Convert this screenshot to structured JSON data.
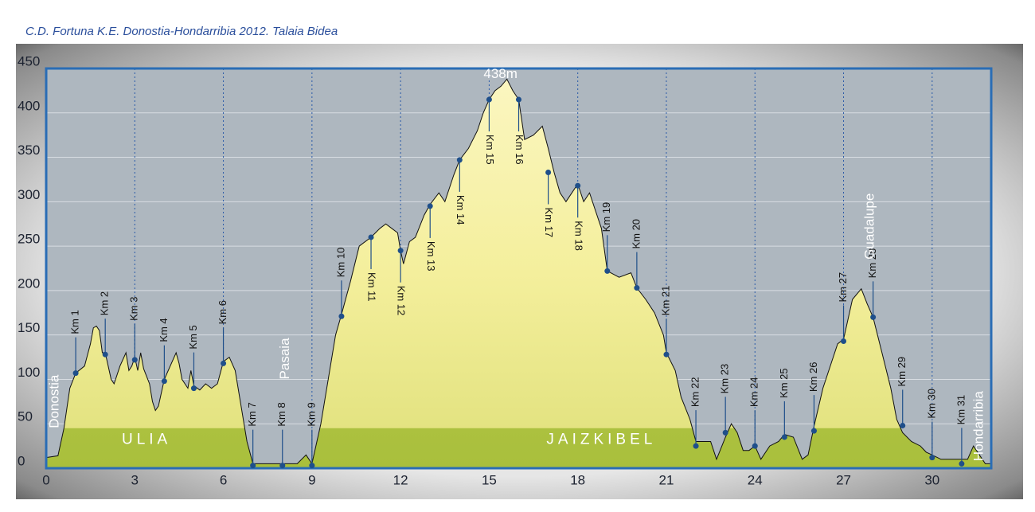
{
  "chart_data": {
    "type": "area",
    "title": "C.D. Fortuna K.E.   Donostia-Hondarribia 2012.  Talaia Bidea",
    "x": [
      0,
      0.4,
      0.6,
      0.8,
      1.0,
      1.3,
      1.5,
      1.6,
      1.7,
      1.8,
      1.9,
      2.0,
      2.2,
      2.3,
      2.5,
      2.7,
      2.8,
      2.9,
      3.0,
      3.1,
      3.2,
      3.3,
      3.5,
      3.6,
      3.7,
      3.8,
      4.0,
      4.2,
      4.4,
      4.5,
      4.6,
      4.8,
      4.9,
      5.0,
      5.2,
      5.4,
      5.6,
      5.8,
      6.0,
      6.2,
      6.4,
      6.6,
      6.8,
      7.0,
      7.5,
      8.0,
      8.5,
      8.8,
      9.0,
      9.3,
      9.6,
      9.8,
      10.0,
      10.3,
      10.6,
      11.0,
      11.3,
      11.5,
      11.7,
      11.9,
      12.0,
      12.1,
      12.3,
      12.5,
      12.8,
      13.0,
      13.3,
      13.5,
      13.8,
      14.0,
      14.3,
      14.6,
      14.8,
      15.0,
      15.2,
      15.4,
      15.6,
      15.8,
      16.0,
      16.2,
      16.5,
      16.8,
      17.0,
      17.2,
      17.4,
      17.6,
      17.8,
      18.0,
      18.2,
      18.4,
      18.6,
      18.8,
      19.0,
      19.4,
      19.8,
      20.0,
      20.3,
      20.6,
      20.9,
      21.0,
      21.3,
      21.5,
      21.8,
      22.0,
      22.2,
      22.5,
      22.7,
      23.0,
      23.2,
      23.4,
      23.6,
      23.8,
      24.0,
      24.2,
      24.5,
      24.8,
      25.0,
      25.3,
      25.6,
      25.8,
      26.0,
      26.3,
      26.6,
      26.8,
      27.0,
      27.3,
      27.6,
      27.8,
      28.0,
      28.3,
      28.6,
      28.8,
      29.0,
      29.3,
      29.6,
      29.8,
      30.0,
      30.3,
      30.6,
      31.0,
      31.2,
      31.4,
      31.6,
      31.8,
      32.0
    ],
    "values": [
      12,
      14,
      45,
      90,
      107,
      115,
      140,
      158,
      160,
      155,
      130,
      130,
      100,
      95,
      115,
      130,
      110,
      115,
      125,
      110,
      130,
      112,
      95,
      75,
      65,
      70,
      100,
      115,
      130,
      118,
      100,
      90,
      110,
      93,
      88,
      95,
      90,
      95,
      120,
      125,
      110,
      70,
      30,
      5,
      5,
      5,
      5,
      15,
      5,
      50,
      110,
      150,
      173,
      210,
      250,
      260,
      270,
      275,
      270,
      265,
      245,
      230,
      255,
      260,
      285,
      297,
      310,
      300,
      330,
      347,
      360,
      380,
      400,
      415,
      425,
      430,
      438,
      425,
      415,
      370,
      375,
      385,
      360,
      333,
      310,
      300,
      310,
      320,
      300,
      310,
      290,
      270,
      222,
      215,
      220,
      203,
      190,
      175,
      150,
      130,
      110,
      80,
      55,
      30,
      30,
      30,
      10,
      35,
      50,
      40,
      20,
      20,
      25,
      10,
      25,
      30,
      38,
      35,
      10,
      15,
      47,
      90,
      120,
      140,
      145,
      190,
      202,
      185,
      170,
      130,
      90,
      55,
      40,
      30,
      25,
      18,
      15,
      10,
      10,
      10,
      10,
      25,
      15,
      5,
      5
    ],
    "xlim": [
      0,
      32
    ],
    "ylim": [
      0,
      450
    ],
    "xticks": [
      0,
      3,
      6,
      9,
      12,
      15,
      18,
      21,
      24,
      27,
      30
    ],
    "yticks": [
      0,
      50,
      100,
      150,
      200,
      250,
      300,
      350,
      400,
      450
    ],
    "grid": true,
    "peak_label": "438m",
    "markers": {
      "labels": [
        "Km 1",
        "Km 2",
        "Km 3",
        "Km 4",
        "Km 5",
        "Km 6",
        "Km 7",
        "Km 8",
        "Km 9",
        "Km 10",
        "Km 11",
        "Km 12",
        "Km 13",
        "Km 14",
        "Km 15",
        "Km 16",
        "Km 17",
        "Km 18",
        "Km 19",
        "Km 20",
        "Km 21",
        "Km 22",
        "Km 23",
        "Km 24",
        "Km 25",
        "Km 26",
        "Km 27",
        "Km 28",
        "Km 29",
        "Km 30",
        "Km 31"
      ],
      "x": [
        1,
        2,
        3,
        4,
        5,
        6,
        7,
        8,
        9,
        10,
        11,
        12,
        13,
        14,
        15,
        16,
        17,
        18,
        19,
        20,
        21,
        22,
        23,
        24,
        25,
        26,
        27,
        28,
        29,
        30,
        31
      ],
      "values": [
        107,
        128,
        122,
        98,
        90,
        118,
        3,
        3,
        3,
        171,
        260,
        245,
        295,
        347,
        415,
        415,
        333,
        318,
        222,
        203,
        128,
        25,
        40,
        25,
        35,
        42,
        143,
        170,
        48,
        12,
        5
      ]
    },
    "places": [
      "Donostia",
      "Pasaia",
      "Guadalupe",
      "Hondarribia"
    ],
    "regions": [
      "ULIA",
      "JAIZKIBEL"
    ]
  }
}
